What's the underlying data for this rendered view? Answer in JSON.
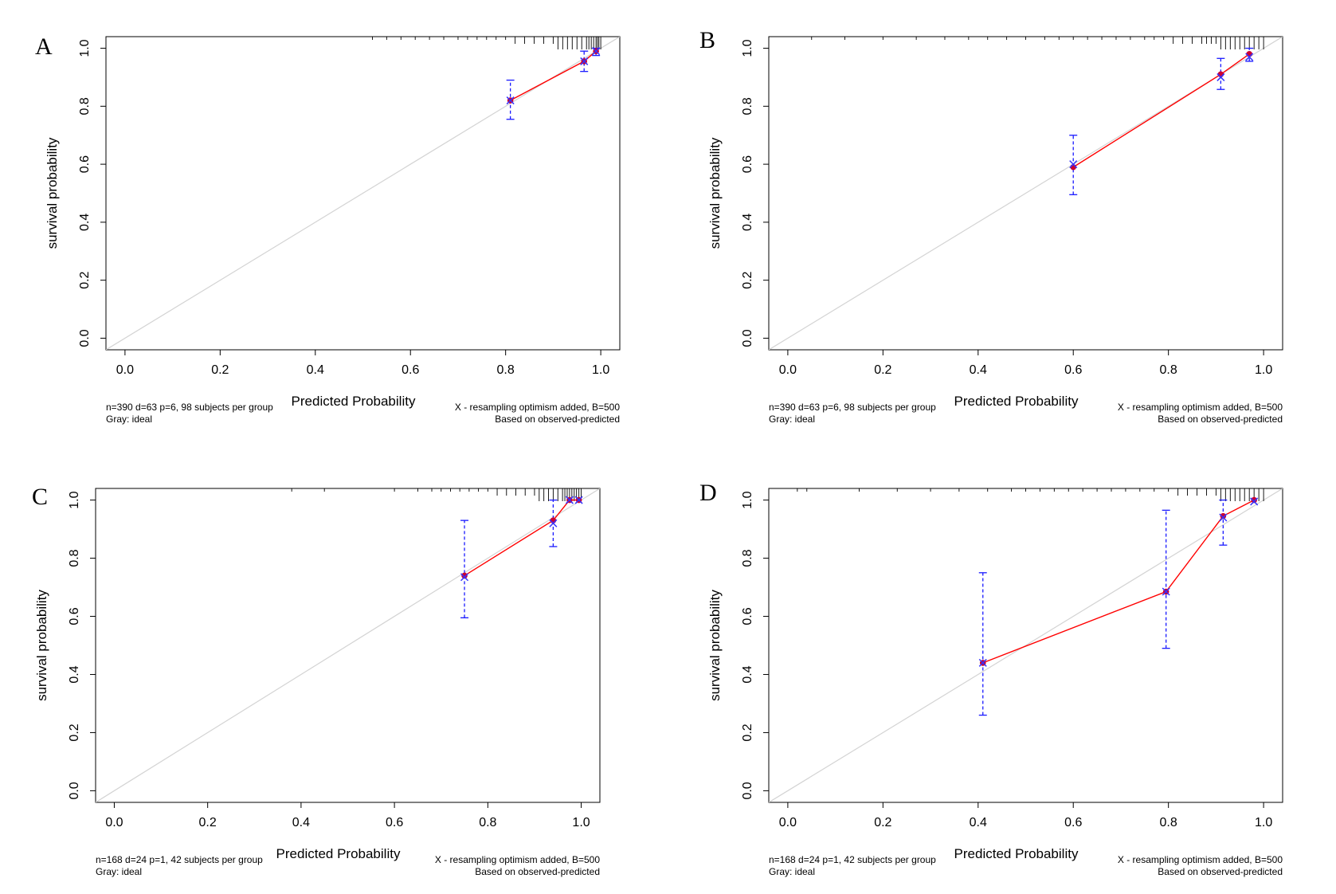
{
  "colors": {
    "ideal_line": "#d3d3d3",
    "calibration_line": "#ff0000",
    "predicted_point": "#cc0033",
    "corrected_marker": "#3333ff",
    "error_bar": "#1a1aff",
    "rug": "#000000",
    "axis": "#000000"
  },
  "chart_data": [
    {
      "panel": "A",
      "type": "line",
      "xlabel": "Predicted Probability",
      "ylabel": "survival probability",
      "xlim": [
        -0.04,
        1.04
      ],
      "ylim": [
        -0.04,
        1.04
      ],
      "x_ticks": [
        "0.0",
        "0.2",
        "0.4",
        "0.6",
        "0.8",
        "1.0"
      ],
      "y_ticks": [
        "0.0",
        "0.2",
        "0.4",
        "0.6",
        "0.8",
        "1.0"
      ],
      "footnote_left": [
        "n=390 d=63 p=6, 98 subjects per group",
        "Gray: ideal"
      ],
      "footnote_right": [
        "X - resampling optimism added, B=500",
        "Based on observed-predicted"
      ],
      "series": [
        {
          "name": "Gray: ideal",
          "x": [
            0,
            1
          ],
          "y": [
            0,
            1
          ]
        },
        {
          "name": "observed",
          "x": [
            0.81,
            0.965,
            0.99
          ],
          "y": [
            0.82,
            0.955,
            0.99
          ]
        },
        {
          "name": "X - resampling optimism added",
          "x": [
            0.81,
            0.965,
            0.99
          ],
          "y": [
            0.82,
            0.955,
            0.99
          ]
        }
      ],
      "error_bars": [
        {
          "x": 0.81,
          "low": 0.755,
          "high": 0.89
        },
        {
          "x": 0.965,
          "low": 0.92,
          "high": 0.99
        },
        {
          "x": 0.99,
          "low": 0.975,
          "high": 1.0
        }
      ],
      "rug": [
        0.52,
        0.55,
        0.58,
        0.61,
        0.64,
        0.67,
        0.7,
        0.72,
        0.74,
        0.76,
        0.78,
        0.8,
        0.82,
        0.84,
        0.86,
        0.88,
        0.9,
        0.91,
        0.92,
        0.93,
        0.94,
        0.95,
        0.96,
        0.97,
        0.975,
        0.98,
        0.985,
        0.99,
        0.993,
        0.996,
        1.0
      ]
    },
    {
      "panel": "B",
      "type": "line",
      "xlabel": "Predicted Probability",
      "ylabel": "survival probability",
      "xlim": [
        -0.04,
        1.04
      ],
      "ylim": [
        -0.04,
        1.04
      ],
      "x_ticks": [
        "0.0",
        "0.2",
        "0.4",
        "0.6",
        "0.8",
        "1.0"
      ],
      "y_ticks": [
        "0.0",
        "0.2",
        "0.4",
        "0.6",
        "0.8",
        "1.0"
      ],
      "footnote_left": [
        "n=390 d=63 p=6, 98 subjects per group",
        "Gray: ideal"
      ],
      "footnote_right": [
        "X - resampling optimism added, B=500",
        "Based on observed-predicted"
      ],
      "series": [
        {
          "name": "Gray: ideal",
          "x": [
            0,
            1
          ],
          "y": [
            0,
            1
          ]
        },
        {
          "name": "observed",
          "x": [
            0.6,
            0.91,
            0.97
          ],
          "y": [
            0.59,
            0.91,
            0.98
          ]
        },
        {
          "name": "X - resampling optimism added",
          "x": [
            0.6,
            0.91,
            0.97
          ],
          "y": [
            0.6,
            0.9,
            0.97
          ]
        }
      ],
      "error_bars": [
        {
          "x": 0.6,
          "low": 0.495,
          "high": 0.7
        },
        {
          "x": 0.91,
          "low": 0.858,
          "high": 0.965
        },
        {
          "x": 0.97,
          "low": 0.955,
          "high": 1.0
        }
      ],
      "rug": [
        0.05,
        0.12,
        0.2,
        0.27,
        0.33,
        0.38,
        0.42,
        0.46,
        0.5,
        0.54,
        0.57,
        0.6,
        0.63,
        0.66,
        0.69,
        0.72,
        0.75,
        0.77,
        0.79,
        0.81,
        0.83,
        0.85,
        0.87,
        0.88,
        0.89,
        0.9,
        0.91,
        0.92,
        0.93,
        0.94,
        0.95,
        0.96,
        0.97,
        0.98,
        0.99,
        1.0
      ]
    },
    {
      "panel": "C",
      "type": "line",
      "xlabel": "Predicted Probability",
      "ylabel": "survival probability",
      "xlim": [
        -0.04,
        1.04
      ],
      "ylim": [
        -0.04,
        1.04
      ],
      "x_ticks": [
        "0.0",
        "0.2",
        "0.4",
        "0.6",
        "0.8",
        "1.0"
      ],
      "y_ticks": [
        "0.0",
        "0.2",
        "0.4",
        "0.6",
        "0.8",
        "1.0"
      ],
      "footnote_left": [
        "n=168 d=24 p=1, 42 subjects per group",
        "Gray: ideal"
      ],
      "footnote_right": [
        "X - resampling optimism added, B=500",
        "Based on observed-predicted"
      ],
      "series": [
        {
          "name": "Gray: ideal",
          "x": [
            0,
            1
          ],
          "y": [
            0,
            1
          ]
        },
        {
          "name": "observed",
          "x": [
            0.75,
            0.94,
            0.975,
            0.995
          ],
          "y": [
            0.74,
            0.93,
            1.0,
            1.0
          ]
        },
        {
          "name": "X - resampling optimism added",
          "x": [
            0.75,
            0.94,
            0.975,
            0.995
          ],
          "y": [
            0.735,
            0.92,
            1.0,
            1.0
          ]
        }
      ],
      "error_bars": [
        {
          "x": 0.75,
          "low": 0.595,
          "high": 0.93
        },
        {
          "x": 0.94,
          "low": 0.84,
          "high": 1.0
        }
      ],
      "rug": [
        0.38,
        0.45,
        0.6,
        0.65,
        0.68,
        0.7,
        0.72,
        0.74,
        0.76,
        0.78,
        0.8,
        0.82,
        0.84,
        0.86,
        0.88,
        0.9,
        0.91,
        0.92,
        0.93,
        0.94,
        0.95,
        0.96,
        0.965,
        0.97,
        0.975,
        0.98,
        0.985,
        0.99,
        0.995,
        1.0
      ]
    },
    {
      "panel": "D",
      "type": "line",
      "xlabel": "Predicted Probability",
      "ylabel": "survival probability",
      "xlim": [
        -0.04,
        1.04
      ],
      "ylim": [
        -0.04,
        1.04
      ],
      "x_ticks": [
        "0.0",
        "0.2",
        "0.4",
        "0.6",
        "0.8",
        "1.0"
      ],
      "y_ticks": [
        "0.0",
        "0.2",
        "0.4",
        "0.6",
        "0.8",
        "1.0"
      ],
      "footnote_left": [
        "n=168 d=24 p=1, 42 subjects per group",
        "Gray: ideal"
      ],
      "footnote_right": [
        "X - resampling optimism added, B=500",
        "Based on observed-predicted"
      ],
      "series": [
        {
          "name": "Gray: ideal",
          "x": [
            0,
            1
          ],
          "y": [
            0,
            1
          ]
        },
        {
          "name": "observed",
          "x": [
            0.41,
            0.795,
            0.915,
            0.98
          ],
          "y": [
            0.44,
            0.685,
            0.945,
            1.0
          ]
        },
        {
          "name": "X - resampling optimism added",
          "x": [
            0.41,
            0.795,
            0.915,
            0.98
          ],
          "y": [
            0.44,
            0.685,
            0.94,
            0.995
          ]
        }
      ],
      "error_bars": [
        {
          "x": 0.41,
          "low": 0.26,
          "high": 0.75
        },
        {
          "x": 0.795,
          "low": 0.49,
          "high": 0.965
        },
        {
          "x": 0.915,
          "low": 0.845,
          "high": 1.0
        }
      ],
      "rug": [
        0.02,
        0.04,
        0.15,
        0.23,
        0.3,
        0.36,
        0.42,
        0.47,
        0.5,
        0.53,
        0.56,
        0.59,
        0.62,
        0.65,
        0.68,
        0.71,
        0.74,
        0.77,
        0.8,
        0.82,
        0.84,
        0.86,
        0.88,
        0.9,
        0.91,
        0.92,
        0.93,
        0.94,
        0.95,
        0.96,
        0.97,
        0.98,
        0.99,
        1.0
      ]
    }
  ]
}
